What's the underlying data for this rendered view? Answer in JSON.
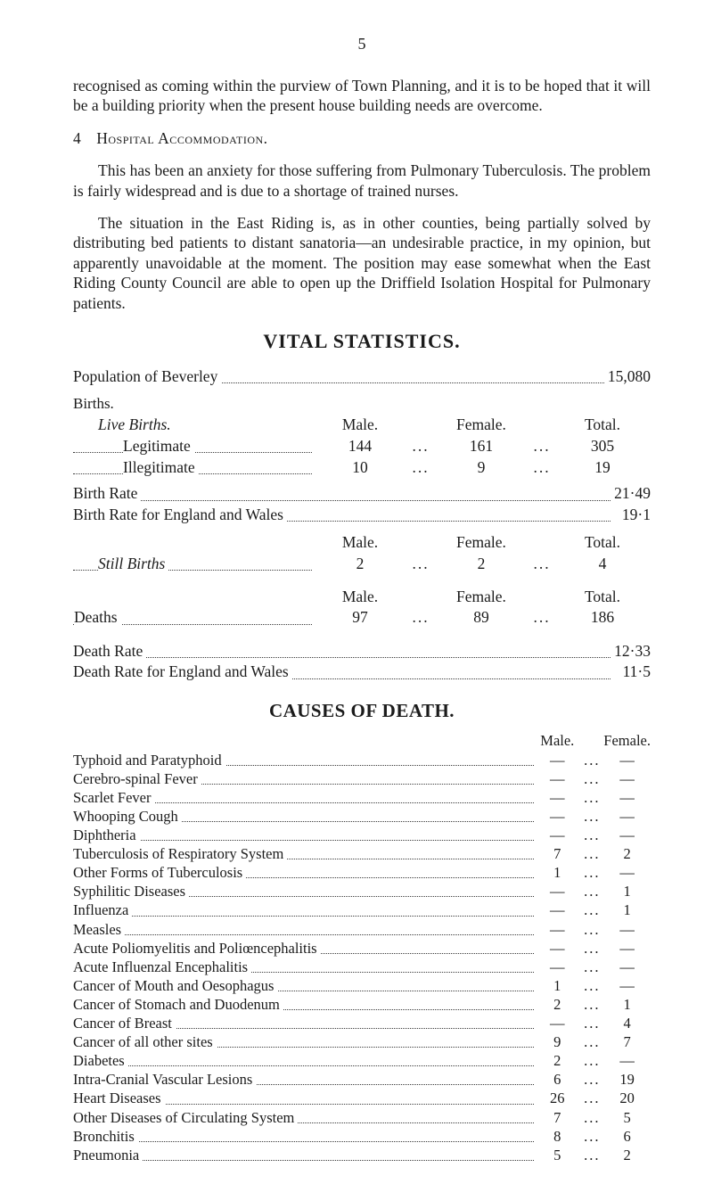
{
  "page_number": "5",
  "paragraphs": {
    "p1": "recognised as coming within the purview of Town Planning, and it is to be hoped that it will be a building priority when the present house building needs are overcome.",
    "p2_num": "4",
    "p2_caps": "Hospital Accommodation.",
    "p3": "This has been an anxiety for those suffering from Pulmonary Tuberculosis. The problem is fairly widespread and is due to a shortage of trained nurses.",
    "p4": "The situation in the East Riding is, as in other counties, being partially solved by distributing bed patients to distant sanatoria—an undesirable practice, in my opinion, but apparently unavoidable at the moment. The position may ease somewhat when the East Riding County Council are able to open up the Driffield Isolation Hospital for Pulmonary patients."
  },
  "vital": {
    "heading": "VITAL STATISTICS.",
    "pop_label": "Population of Beverley",
    "pop_value": "15,080",
    "births_heading": "Births.",
    "live_births_label": "Live Births.",
    "col_male": "Male.",
    "col_female": "Female.",
    "col_total": "Total.",
    "rows1": [
      {
        "label": "Legitimate",
        "m": "144",
        "f": "161",
        "t": "305"
      },
      {
        "label": "Illegitimate",
        "m": "10",
        "f": "9",
        "t": "19"
      }
    ],
    "birth_rate_label": "Birth Rate",
    "birth_rate_value": "21·49",
    "birth_rate_ew_label": "Birth Rate for England and Wales",
    "birth_rate_ew_value": "19·1",
    "still_births_label": "Still Births",
    "still_births": {
      "m": "2",
      "f": "2",
      "t": "4"
    },
    "deaths_label": "Deaths",
    "deaths": {
      "m": "97",
      "f": "89",
      "t": "186"
    },
    "death_rate_label": "Death Rate",
    "death_rate_value": "12·33",
    "death_rate_ew_label": "Death Rate for England and Wales",
    "death_rate_ew_value": "11·5"
  },
  "causes": {
    "heading": "CAUSES OF DEATH.",
    "col_male": "Male.",
    "col_female": "Female.",
    "rows": [
      {
        "label": "Typhoid and Paratyphoid",
        "m": "—",
        "f": "—"
      },
      {
        "label": "Cerebro-spinal Fever",
        "m": "—",
        "f": "—"
      },
      {
        "label": "Scarlet Fever",
        "m": "—",
        "f": "—"
      },
      {
        "label": "Whooping Cough",
        "m": "—",
        "f": "—"
      },
      {
        "label": "Diphtheria",
        "m": "—",
        "f": "—"
      },
      {
        "label": "Tuberculosis of Respiratory System",
        "m": "7",
        "f": "2"
      },
      {
        "label": "Other Forms of Tuberculosis",
        "m": "1",
        "f": "—"
      },
      {
        "label": "Syphilitic Diseases",
        "m": "—",
        "f": "1"
      },
      {
        "label": "Influenza",
        "m": "—",
        "f": "1"
      },
      {
        "label": "Measles",
        "m": "—",
        "f": "—"
      },
      {
        "label": "Acute Poliomyelitis and Poliœncephalitis",
        "m": "—",
        "f": "—"
      },
      {
        "label": "Acute Influenzal Encephalitis",
        "m": "—",
        "f": "—"
      },
      {
        "label": "Cancer of Mouth and Oesophagus",
        "m": "1",
        "f": "—"
      },
      {
        "label": "Cancer of Stomach and Duodenum",
        "m": "2",
        "f": "1"
      },
      {
        "label": "Cancer of Breast",
        "m": "—",
        "f": "4"
      },
      {
        "label": "Cancer of all other sites",
        "m": "9",
        "f": "7"
      },
      {
        "label": "Diabetes",
        "m": "2",
        "f": "—"
      },
      {
        "label": "Intra-Cranial Vascular Lesions",
        "m": "6",
        "f": "19"
      },
      {
        "label": "Heart Diseases",
        "m": "26",
        "f": "20"
      },
      {
        "label": "Other Diseases of Circulating System",
        "m": "7",
        "f": "5"
      },
      {
        "label": "Bronchitis",
        "m": "8",
        "f": "6"
      },
      {
        "label": "Pneumonia",
        "m": "5",
        "f": "2"
      }
    ]
  }
}
